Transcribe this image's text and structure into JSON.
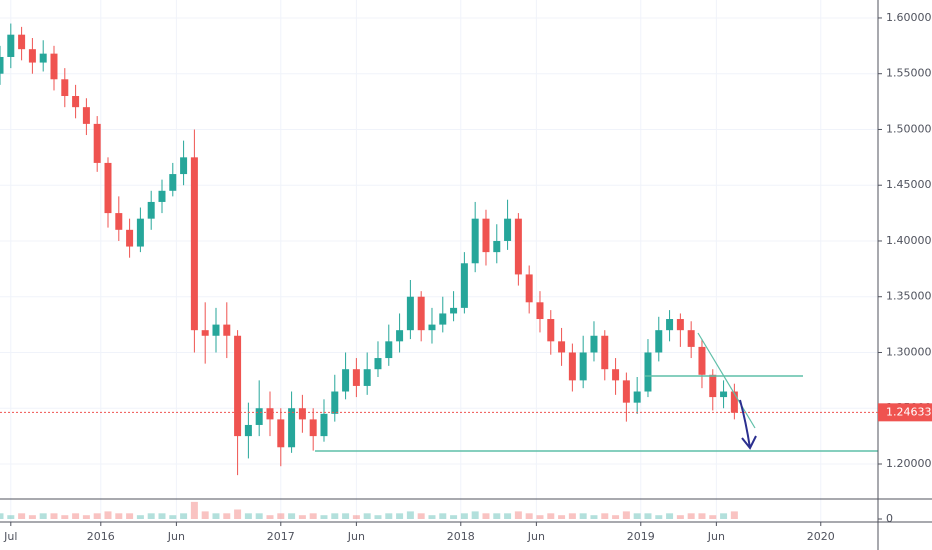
{
  "chart_data": {
    "type": "candlestick",
    "x": [
      2015.44,
      2015.5,
      2015.56,
      2015.62,
      2015.68,
      2015.74,
      2015.8,
      2015.86,
      2015.92,
      2015.98,
      2016.04,
      2016.1,
      2016.16,
      2016.22,
      2016.28,
      2016.34,
      2016.4,
      2016.46,
      2016.52,
      2016.58,
      2016.64,
      2016.7,
      2016.76,
      2016.82,
      2016.88,
      2016.94,
      2017.0,
      2017.06,
      2017.12,
      2017.18,
      2017.24,
      2017.3,
      2017.36,
      2017.42,
      2017.48,
      2017.54,
      2017.6,
      2017.66,
      2017.72,
      2017.78,
      2017.84,
      2017.9,
      2017.96,
      2018.02,
      2018.08,
      2018.14,
      2018.2,
      2018.26,
      2018.32,
      2018.38,
      2018.44,
      2018.5,
      2018.56,
      2018.62,
      2018.68,
      2018.74,
      2018.8,
      2018.86,
      2018.92,
      2018.98,
      2019.04,
      2019.1,
      2019.16,
      2019.22,
      2019.28,
      2019.34,
      2019.4,
      2019.46,
      2019.52
    ],
    "open": [
      1.55,
      1.565,
      1.585,
      1.572,
      1.56,
      1.568,
      1.545,
      1.53,
      1.52,
      1.505,
      1.47,
      1.425,
      1.41,
      1.395,
      1.42,
      1.435,
      1.445,
      1.46,
      1.475,
      1.32,
      1.315,
      1.325,
      1.315,
      1.225,
      1.235,
      1.25,
      1.24,
      1.215,
      1.25,
      1.24,
      1.225,
      1.245,
      1.265,
      1.285,
      1.27,
      1.285,
      1.295,
      1.31,
      1.32,
      1.35,
      1.32,
      1.325,
      1.335,
      1.34,
      1.38,
      1.42,
      1.39,
      1.4,
      1.42,
      1.37,
      1.345,
      1.33,
      1.31,
      1.3,
      1.275,
      1.3,
      1.315,
      1.285,
      1.275,
      1.255,
      1.265,
      1.3,
      1.32,
      1.33,
      1.32,
      1.305,
      1.28,
      1.26,
      1.265
    ],
    "high": [
      1.575,
      1.595,
      1.592,
      1.582,
      1.58,
      1.575,
      1.555,
      1.54,
      1.528,
      1.512,
      1.475,
      1.44,
      1.42,
      1.43,
      1.445,
      1.455,
      1.47,
      1.49,
      1.5,
      1.345,
      1.34,
      1.345,
      1.32,
      1.255,
      1.275,
      1.265,
      1.25,
      1.265,
      1.262,
      1.25,
      1.258,
      1.28,
      1.3,
      1.295,
      1.3,
      1.31,
      1.325,
      1.335,
      1.365,
      1.355,
      1.34,
      1.35,
      1.355,
      1.39,
      1.435,
      1.428,
      1.415,
      1.437,
      1.425,
      1.378,
      1.355,
      1.338,
      1.322,
      1.308,
      1.315,
      1.328,
      1.32,
      1.295,
      1.282,
      1.278,
      1.312,
      1.332,
      1.338,
      1.335,
      1.328,
      1.312,
      1.285,
      1.275,
      1.272
    ],
    "low": [
      1.54,
      1.555,
      1.562,
      1.55,
      1.552,
      1.535,
      1.52,
      1.51,
      1.495,
      1.462,
      1.412,
      1.4,
      1.385,
      1.39,
      1.41,
      1.425,
      1.44,
      1.45,
      1.3,
      1.29,
      1.3,
      1.295,
      1.19,
      1.205,
      1.225,
      1.225,
      1.198,
      1.21,
      1.228,
      1.212,
      1.22,
      1.238,
      1.258,
      1.26,
      1.262,
      1.278,
      1.288,
      1.3,
      1.312,
      1.31,
      1.308,
      1.318,
      1.328,
      1.335,
      1.372,
      1.378,
      1.38,
      1.392,
      1.36,
      1.335,
      1.318,
      1.298,
      1.288,
      1.265,
      1.268,
      1.292,
      1.275,
      1.262,
      1.238,
      1.245,
      1.26,
      1.292,
      1.31,
      1.305,
      1.295,
      1.268,
      1.248,
      1.25,
      1.24
    ],
    "close": [
      1.565,
      1.585,
      1.572,
      1.56,
      1.568,
      1.545,
      1.53,
      1.52,
      1.505,
      1.47,
      1.425,
      1.41,
      1.395,
      1.42,
      1.435,
      1.445,
      1.46,
      1.475,
      1.32,
      1.315,
      1.325,
      1.315,
      1.225,
      1.235,
      1.25,
      1.24,
      1.215,
      1.25,
      1.24,
      1.225,
      1.245,
      1.265,
      1.285,
      1.27,
      1.285,
      1.295,
      1.31,
      1.32,
      1.35,
      1.32,
      1.325,
      1.335,
      1.34,
      1.38,
      1.42,
      1.39,
      1.4,
      1.42,
      1.37,
      1.345,
      1.33,
      1.31,
      1.3,
      1.275,
      1.3,
      1.315,
      1.285,
      1.275,
      1.255,
      1.265,
      1.3,
      1.32,
      1.33,
      1.32,
      1.305,
      1.28,
      1.26,
      1.265,
      1.246
    ],
    "volume": [
      3,
      2,
      3,
      2,
      3,
      3,
      2,
      3,
      2,
      3,
      4,
      3,
      3,
      2,
      3,
      3,
      2,
      3,
      9,
      4,
      3,
      3,
      5,
      3,
      3,
      2,
      3,
      3,
      2,
      3,
      2,
      3,
      3,
      2,
      3,
      2,
      3,
      3,
      4,
      3,
      2,
      3,
      2,
      3,
      4,
      3,
      3,
      3,
      4,
      3,
      2,
      3,
      2,
      3,
      3,
      2,
      3,
      2,
      4,
      3,
      3,
      2,
      3,
      2,
      3,
      3,
      2,
      3,
      4
    ],
    "up_color": "#26a69a",
    "down_color": "#ef5350",
    "xlim": [
      2015.44,
      2020.318
    ],
    "ylim": [
      1.1695,
      1.6161
    ],
    "volume_ylim": [
      0,
      10
    ],
    "xticks": [
      {
        "value": 2015.5,
        "label": "Jul"
      },
      2016,
      {
        "value": 2016.42,
        "label": "Jun"
      },
      2017,
      {
        "value": 2017.42,
        "label": "Jun"
      },
      2018,
      {
        "value": 2018.42,
        "label": "Jun"
      },
      2019,
      {
        "value": 2019.42,
        "label": "Jun"
      },
      2020
    ],
    "yticks": [
      {
        "value": 1.2,
        "label": "1.20000"
      },
      {
        "value": 1.25,
        "label": "1.25000"
      },
      {
        "value": 1.3,
        "label": "1.30000"
      },
      {
        "value": 1.35,
        "label": "1.35000"
      },
      {
        "value": 1.4,
        "label": "1.40000"
      },
      {
        "value": 1.45,
        "label": "1.45000"
      },
      {
        "value": 1.5,
        "label": "1.50000"
      },
      {
        "value": 1.55,
        "label": "1.55000"
      },
      {
        "value": 1.6,
        "label": "1.60000"
      }
    ],
    "volume_yticks": [
      0
    ],
    "last_price": 1.24633,
    "last_price_color": "#ef5350",
    "grid": true
  }
}
